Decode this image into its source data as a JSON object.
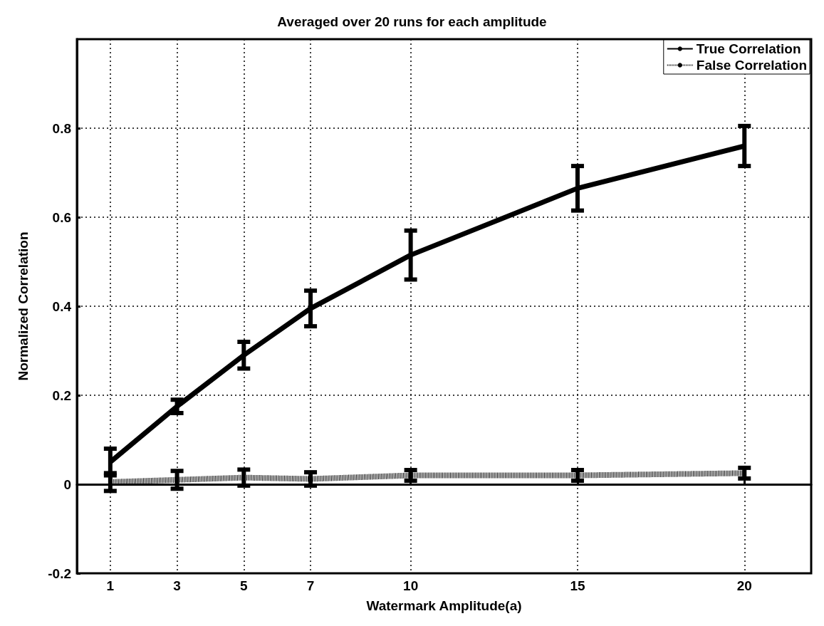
{
  "chart_data": {
    "type": "line",
    "title": "Averaged over 20 runs for each amplitude",
    "xlabel": "Watermark Amplitude(a)",
    "ylabel": "Normalized Correlation",
    "x": [
      1,
      3,
      5,
      7,
      10,
      15,
      20
    ],
    "series": [
      {
        "name": "True Correlation",
        "color": "#000000",
        "line_style": "solid",
        "values": [
          0.05,
          0.175,
          0.29,
          0.395,
          0.515,
          0.665,
          0.76
        ],
        "errors": [
          0.03,
          0.015,
          0.03,
          0.04,
          0.055,
          0.05,
          0.045
        ]
      },
      {
        "name": "False Correlation",
        "color": "#000000",
        "line_style": "dotted",
        "values": [
          0.005,
          0.01,
          0.015,
          0.012,
          0.02,
          0.02,
          0.025
        ],
        "errors": [
          0.02,
          0.02,
          0.018,
          0.015,
          0.012,
          0.012,
          0.012
        ]
      }
    ],
    "xlim": [
      0,
      22
    ],
    "xticks": [
      1,
      3,
      5,
      7,
      10,
      15,
      20
    ],
    "ylim": [
      -0.2,
      1
    ],
    "yticks": [
      -0.2,
      0,
      0.2,
      0.4,
      0.6,
      0.8
    ],
    "grid": true,
    "legend": "top right",
    "marker": "none"
  }
}
